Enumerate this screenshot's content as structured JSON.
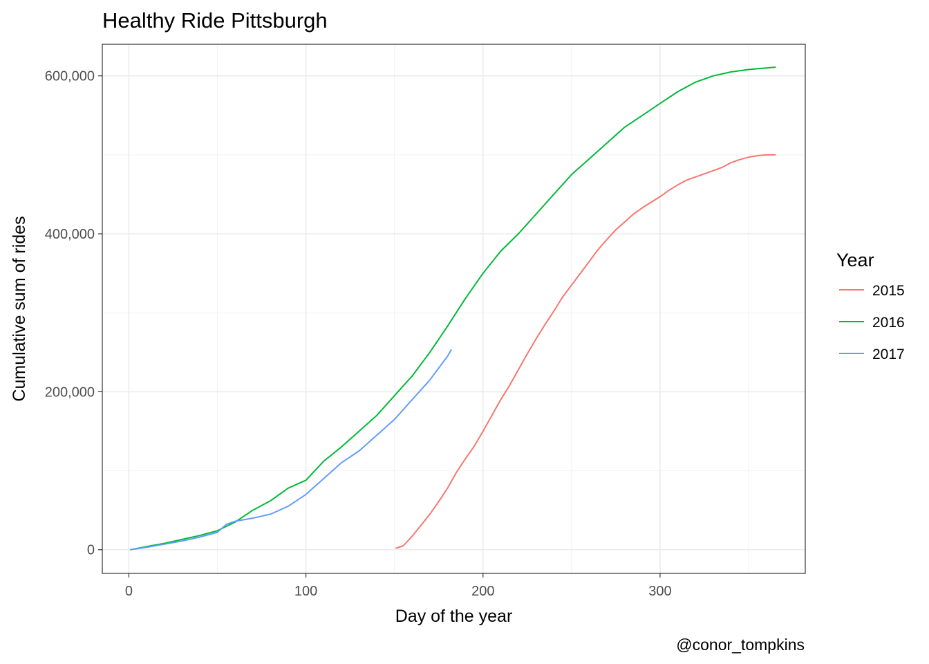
{
  "chart_data": {
    "type": "line",
    "title": "Healthy Ride Pittsburgh",
    "xlabel": "Day of the year",
    "ylabel": "Cumulative sum of rides",
    "caption": "@conor_tompkins",
    "xlim": [
      -15,
      382
    ],
    "ylim": [
      -30000,
      640000
    ],
    "x_ticks": [
      0,
      100,
      200,
      300
    ],
    "x_tick_labels": [
      "0",
      "100",
      "200",
      "300"
    ],
    "y_ticks": [
      0,
      200000,
      400000,
      600000
    ],
    "y_tick_labels": [
      "0",
      "200,000",
      "400,000",
      "600,000"
    ],
    "y_minor_ticks": [
      100000,
      300000,
      500000
    ],
    "x_minor_ticks": [
      50,
      150,
      250,
      350
    ],
    "grid": true,
    "legend": {
      "title": "Year",
      "position": "right"
    },
    "series": [
      {
        "name": "2015",
        "color": "#F8766D",
        "x": [
          151,
          155,
          160,
          165,
          170,
          175,
          180,
          185,
          190,
          195,
          200,
          205,
          210,
          215,
          220,
          225,
          230,
          235,
          240,
          245,
          250,
          255,
          260,
          265,
          270,
          275,
          280,
          285,
          290,
          295,
          300,
          305,
          310,
          315,
          320,
          325,
          330,
          335,
          340,
          345,
          350,
          355,
          360,
          365
        ],
        "y": [
          2000,
          5000,
          17000,
          31000,
          45000,
          61000,
          78000,
          98000,
          115000,
          131000,
          150000,
          170000,
          190000,
          208000,
          228000,
          248000,
          267000,
          285000,
          302000,
          320000,
          335000,
          350000,
          365000,
          380000,
          393000,
          405000,
          415000,
          425000,
          433000,
          440000,
          447000,
          455000,
          462000,
          468000,
          472000,
          476000,
          480000,
          484000,
          490000,
          494000,
          497000,
          499000,
          500000,
          500000
        ]
      },
      {
        "name": "2016",
        "color": "#00BA38",
        "x": [
          1,
          10,
          20,
          30,
          40,
          50,
          60,
          70,
          80,
          90,
          100,
          105,
          110,
          120,
          130,
          140,
          150,
          160,
          170,
          180,
          190,
          200,
          210,
          220,
          230,
          240,
          250,
          260,
          270,
          280,
          290,
          300,
          310,
          320,
          330,
          340,
          350,
          360,
          365
        ],
        "y": [
          0,
          4000,
          8000,
          13000,
          18000,
          24000,
          35000,
          50000,
          62000,
          78000,
          88000,
          100000,
          112000,
          130000,
          150000,
          170000,
          195000,
          220000,
          250000,
          283000,
          318000,
          350000,
          378000,
          400000,
          425000,
          450000,
          475000,
          495000,
          515000,
          535000,
          550000,
          565000,
          580000,
          592000,
          600000,
          605000,
          608000,
          610000,
          611000
        ]
      },
      {
        "name": "2017",
        "color": "#619CFF",
        "x": [
          1,
          10,
          20,
          30,
          40,
          50,
          55,
          60,
          70,
          80,
          90,
          100,
          110,
          120,
          130,
          140,
          150,
          160,
          170,
          175,
          180,
          182
        ],
        "y": [
          0,
          3000,
          7000,
          11000,
          16000,
          22000,
          32000,
          36000,
          40000,
          45000,
          55000,
          70000,
          90000,
          110000,
          125000,
          145000,
          165000,
          190000,
          215000,
          230000,
          245000,
          253000
        ]
      }
    ]
  }
}
